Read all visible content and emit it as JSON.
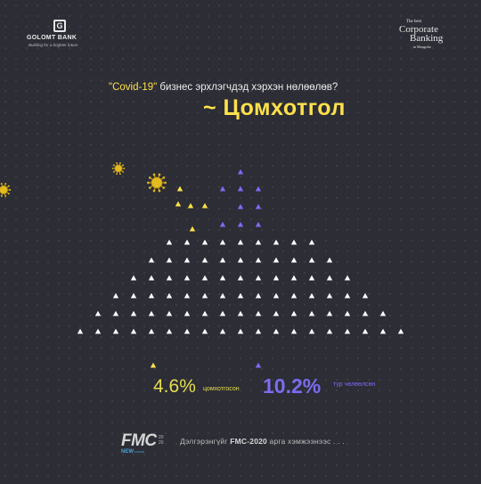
{
  "logo_left": {
    "mark": "G",
    "brand": "GOLOMT BANK",
    "tagline": "Building for a brighter future"
  },
  "logo_right": {
    "line1": "The best",
    "line2": "Corporate",
    "line3": "Banking",
    "line4": "in Mongolia"
  },
  "question": {
    "quoted": "\"Covid-19\"",
    "rest": " бизнес эрхлэгчдэд хэрхэн нөлөөлөв?"
  },
  "headline": "~ Цомхотгол",
  "stats": {
    "decreased": {
      "value": "4.6%",
      "label": "цомхотгосон",
      "color": "#e6de4e"
    },
    "increased": {
      "value": "10.2%",
      "label": "түр чөлөөлсөн",
      "color": "#7b6cf0"
    }
  },
  "footer": {
    "fmc": "FMC",
    "year": "20 20",
    "new_label": "NEW",
    "new_sub": "normal",
    "note_prefix": "Дэлгэрэнгүйг ",
    "note_bold": "FMC-2020",
    "note_suffix": " арга хэмжээнээс . . ."
  },
  "colors": {
    "background": "#2c2d35",
    "accent_yellow": "#ffe14a",
    "accent_purple": "#7b6cf0",
    "triangle_white": "#ffffff"
  },
  "icons": [
    "virus-icon",
    "virus-icon",
    "virus-icon"
  ]
}
